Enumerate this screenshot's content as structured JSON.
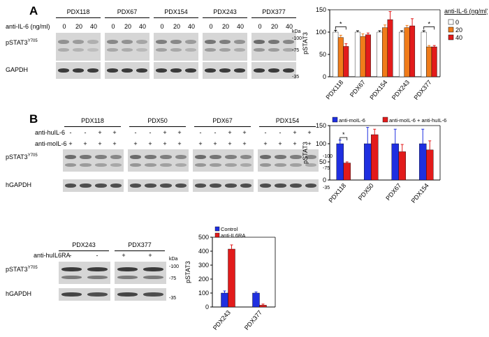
{
  "panelA": {
    "letter": "A",
    "samples": [
      "PDX118",
      "PDX67",
      "PDX154",
      "PDX243",
      "PDX377"
    ],
    "treatment_label": "anti-IL-6 (ng/ml)",
    "doses": [
      "0",
      "20",
      "40"
    ],
    "kda": "kDa",
    "rows": [
      {
        "label": "pSTAT3",
        "sup": "Y705",
        "markers": [
          "-100",
          "-75"
        ]
      },
      {
        "label": "GAPDH",
        "sup": "",
        "markers": [
          "-35"
        ]
      }
    ]
  },
  "panelB": {
    "letter": "B",
    "samples": [
      "PDX118",
      "PDX50",
      "PDX67",
      "PDX154"
    ],
    "treat_rows": [
      {
        "label": "anti-huIL-6",
        "signs": [
          "-",
          "-",
          "+",
          "+"
        ]
      },
      {
        "label": "anti-moIL-6",
        "signs": [
          "+",
          "+",
          "+",
          "+"
        ]
      }
    ],
    "rows": [
      {
        "label": "pSTAT3",
        "sup": "Y705",
        "markers": [
          "-100",
          "-75"
        ]
      },
      {
        "label": "hGAPDH",
        "sup": "",
        "markers": [
          "-35"
        ]
      }
    ]
  },
  "panelC": {
    "samples": [
      "PDX243",
      "PDX377"
    ],
    "treat_label": "anti-huIL6RA",
    "signs": [
      "-",
      "-",
      "+",
      "+"
    ],
    "kda": "kDa",
    "rows": [
      {
        "label": "pSTAT3",
        "sup": "Y705",
        "markers": [
          "-100",
          "-75"
        ]
      },
      {
        "label": "hGAPDH",
        "sup": "",
        "markers": [
          "-35"
        ]
      }
    ]
  },
  "chart_data": [
    {
      "type": "bar",
      "categories": [
        "PDX118",
        "PDX67",
        "PDX154",
        "PDX243",
        "PDX377"
      ],
      "series": [
        {
          "name": "0",
          "color": "#ffffff",
          "values": [
            100,
            100,
            100,
            100,
            100
          ],
          "err": [
            4,
            3,
            3,
            3,
            3
          ]
        },
        {
          "name": "20",
          "color": "#f07c1a",
          "values": [
            88,
            90,
            110,
            110,
            67
          ],
          "err": [
            5,
            6,
            6,
            5,
            3
          ]
        },
        {
          "name": "40",
          "color": "#e21b1b",
          "values": [
            68,
            94,
            128,
            114,
            67
          ],
          "err": [
            6,
            4,
            18,
            16,
            3
          ]
        }
      ],
      "ylabel": "pSTAT3",
      "legend_title": "anti-IL-6 (ng/ml)",
      "ylim": [
        0,
        150
      ],
      "yticks": [
        0,
        50,
        100,
        150
      ],
      "legend": "right",
      "significance": [
        "*",
        "*"
      ]
    },
    {
      "type": "bar",
      "categories": [
        "PDX118",
        "PDX50",
        "PDX67",
        "PDX154"
      ],
      "series": [
        {
          "name": "anti-moIL-6",
          "color": "#1f2fe0",
          "values": [
            100,
            100,
            100,
            100
          ],
          "err": [
            10,
            45,
            40,
            40
          ]
        },
        {
          "name": "anti-moIL-6 + anti-huIL-6",
          "color": "#e21b1b",
          "values": [
            47,
            125,
            78,
            83
          ],
          "err": [
            3,
            15,
            20,
            25
          ]
        }
      ],
      "ylabel": "pSTAT3",
      "ylim": [
        0,
        150
      ],
      "yticks": [
        0,
        50,
        100,
        150
      ],
      "legend": "top",
      "significance": [
        "*"
      ]
    },
    {
      "type": "bar",
      "categories": [
        "PDX243",
        "PDX377"
      ],
      "series": [
        {
          "name": "Control",
          "color": "#1f2fe0",
          "values": [
            100,
            100
          ],
          "err": [
            15,
            8
          ]
        },
        {
          "name": "anti-IL6RA",
          "color": "#e21b1b",
          "values": [
            415,
            13
          ],
          "err": [
            30,
            8
          ]
        }
      ],
      "ylabel": "pSTAT3",
      "ylim": [
        0,
        500
      ],
      "yticks": [
        0,
        100,
        200,
        300,
        400,
        500
      ],
      "legend": "top-left"
    }
  ]
}
